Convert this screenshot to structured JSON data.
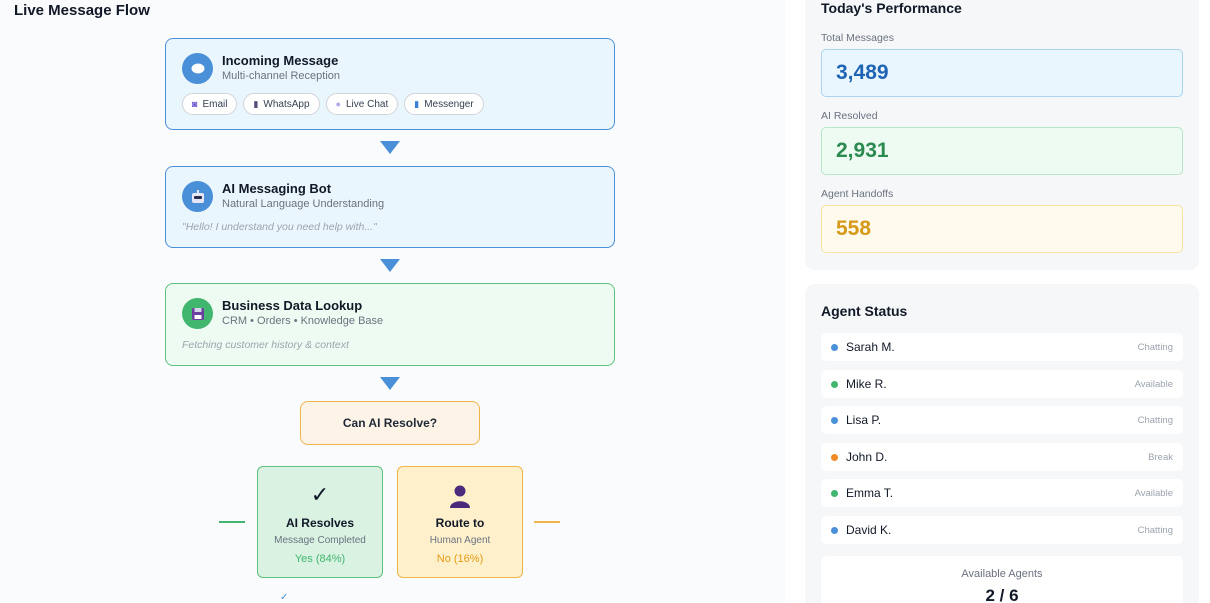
{
  "flow": {
    "title": "Live Message Flow",
    "incoming": {
      "title": "Incoming Message",
      "subtitle": "Multi-channel Reception",
      "channels": [
        {
          "label": "Email",
          "icon": "email-icon"
        },
        {
          "label": "WhatsApp",
          "icon": "whatsapp-icon"
        },
        {
          "label": "Live Chat",
          "icon": "chat-bubble-icon"
        },
        {
          "label": "Messenger",
          "icon": "messenger-icon"
        }
      ]
    },
    "bot": {
      "title": "AI Messaging Bot",
      "subtitle": "Natural Language Understanding",
      "quote": "\"Hello! I understand you need help with...\""
    },
    "lookup": {
      "title": "Business Data Lookup",
      "subtitle": "CRM • Orders • Knowledge Base",
      "note": "Fetching customer history & context"
    },
    "decision": {
      "label": "Can AI Resolve?"
    },
    "ai_resolves": {
      "icon": "✓",
      "title": "AI Resolves",
      "subtitle": "Message Completed",
      "result": "Yes (84%)"
    },
    "route": {
      "title": "Route to",
      "subtitle": "Human Agent",
      "result": "No (16%)"
    }
  },
  "performance": {
    "title": "Today's Performance",
    "metrics": [
      {
        "label": "Total Messages",
        "value": "3,489",
        "color": "#1e64b5"
      },
      {
        "label": "AI Resolved",
        "value": "2,931",
        "color": "#2b8a4f"
      },
      {
        "label": "Agent Handoffs",
        "value": "558",
        "color": "#d69a1a"
      }
    ]
  },
  "agents": {
    "title": "Agent Status",
    "list": [
      {
        "name": "Sarah M.",
        "status": "Chatting",
        "color": "#4a90d9"
      },
      {
        "name": "Mike R.",
        "status": "Available",
        "color": "#41b66e"
      },
      {
        "name": "Lisa P.",
        "status": "Chatting",
        "color": "#4a90d9"
      },
      {
        "name": "John D.",
        "status": "Break",
        "color": "#f08a24"
      },
      {
        "name": "Emma T.",
        "status": "Available",
        "color": "#41b66e"
      },
      {
        "name": "David K.",
        "status": "Chatting",
        "color": "#4a90d9"
      }
    ],
    "available_label": "Available Agents",
    "available_value": "2 / 6"
  }
}
